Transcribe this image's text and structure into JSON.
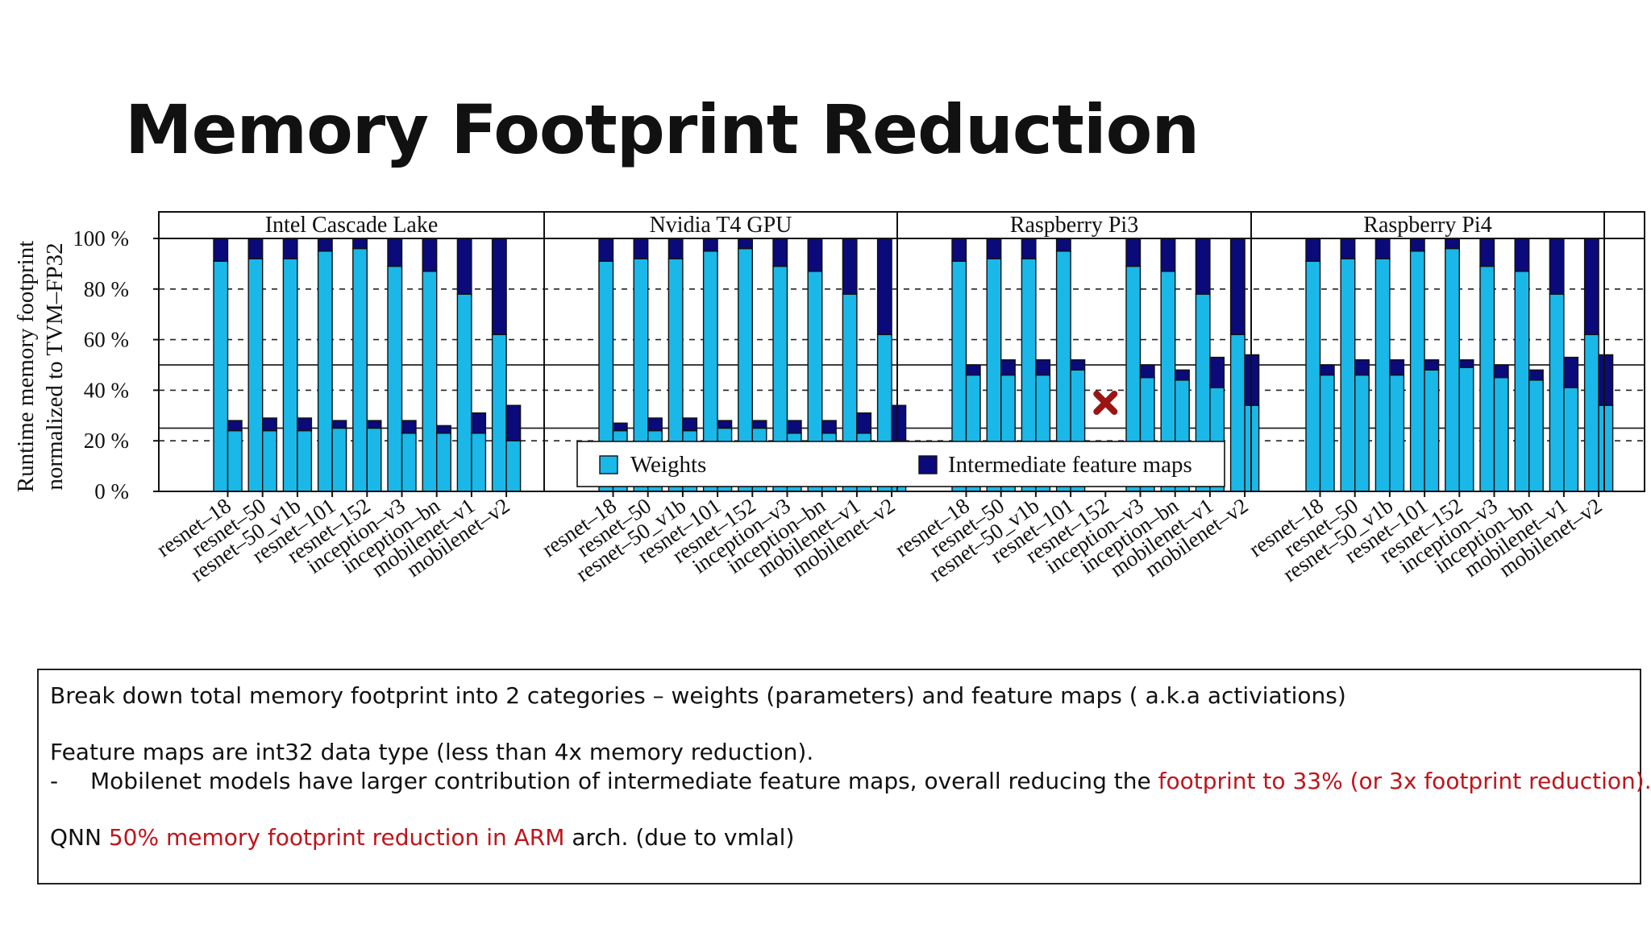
{
  "slide": {
    "title": "Memory Footprint Reduction"
  },
  "colors": {
    "weights": "#1ab8e8",
    "feature_maps": "#0a0a7a",
    "highlight": "#c0141b",
    "marker": "#9b1515"
  },
  "chart_data": {
    "type": "bar",
    "stacked": true,
    "ylabel_line1": "Runtime memory footprint",
    "ylabel_line2": "normalized to TVM–FP32",
    "ylim": [
      0,
      100
    ],
    "yticks": [
      "0 %",
      "20 %",
      "40 %",
      "60 %",
      "80 %",
      "100 %"
    ],
    "grid": "dashed horizontal",
    "legend": {
      "placement": "bottom-center",
      "items": [
        "Weights",
        "Intermediate feature maps"
      ]
    },
    "categories": [
      "resnet–18",
      "resnet–50",
      "resnet–50_v1b",
      "resnet–101",
      "resnet–152",
      "inception–v3",
      "inception–bn",
      "mobilenet–v1",
      "mobilenet–v2"
    ],
    "panels": [
      {
        "title": "Intel Cascade Lake",
        "fp32": {
          "weights": [
            91,
            92,
            92,
            95,
            96,
            89,
            87,
            78,
            62
          ],
          "feature_maps": [
            9,
            8,
            8,
            5,
            4,
            11,
            13,
            22,
            38
          ]
        },
        "quantized": {
          "weights": [
            24,
            24,
            24,
            25,
            25,
            23,
            23,
            23,
            20
          ],
          "feature_maps": [
            4,
            5,
            5,
            3,
            3,
            5,
            3,
            8,
            14
          ]
        },
        "missing": []
      },
      {
        "title": "Nvidia T4 GPU",
        "fp32": {
          "weights": [
            91,
            92,
            92,
            95,
            96,
            89,
            87,
            78,
            62
          ],
          "feature_maps": [
            9,
            8,
            8,
            5,
            4,
            11,
            13,
            22,
            38
          ]
        },
        "quantized": {
          "weights": [
            24,
            24,
            24,
            25,
            25,
            23,
            23,
            23,
            20
          ],
          "feature_maps": [
            3,
            5,
            5,
            3,
            3,
            5,
            5,
            8,
            14
          ]
        },
        "missing": []
      },
      {
        "title": "Raspberry Pi3",
        "fp32": {
          "weights": [
            91,
            92,
            92,
            95,
            0,
            89,
            87,
            78,
            62
          ],
          "feature_maps": [
            9,
            8,
            8,
            5,
            0,
            11,
            13,
            22,
            38
          ]
        },
        "quantized": {
          "weights": [
            46,
            46,
            46,
            48,
            0,
            45,
            44,
            41,
            34
          ],
          "feature_maps": [
            4,
            6,
            6,
            4,
            0,
            5,
            4,
            12,
            20
          ]
        },
        "missing": [
          4
        ]
      },
      {
        "title": "Raspberry Pi4",
        "fp32": {
          "weights": [
            91,
            92,
            92,
            95,
            96,
            89,
            87,
            78,
            62
          ],
          "feature_maps": [
            9,
            8,
            8,
            5,
            4,
            11,
            13,
            22,
            38
          ]
        },
        "quantized": {
          "weights": [
            46,
            46,
            46,
            48,
            49,
            45,
            44,
            41,
            34
          ],
          "feature_maps": [
            4,
            6,
            6,
            4,
            3,
            5,
            4,
            12,
            20
          ]
        },
        "missing": []
      }
    ]
  },
  "notes": {
    "line1": "Break down total memory footprint into 2 categories – weights (parameters) and feature maps ( a.k.a activiations)",
    "line2": "Feature maps are int32 data type (less than 4x memory reduction).",
    "line3_dash": "-",
    "line3_text": "Mobilenet models have larger contribution of intermediate feature maps, overall reducing the ",
    "line3_highlight": "footprint to 33% (or 3x footprint reduction).",
    "line4_prefix": "QNN ",
    "line4_highlight": "50% memory footprint reduction in ARM",
    "line4_suffix": " arch. (due to vmlal)"
  }
}
